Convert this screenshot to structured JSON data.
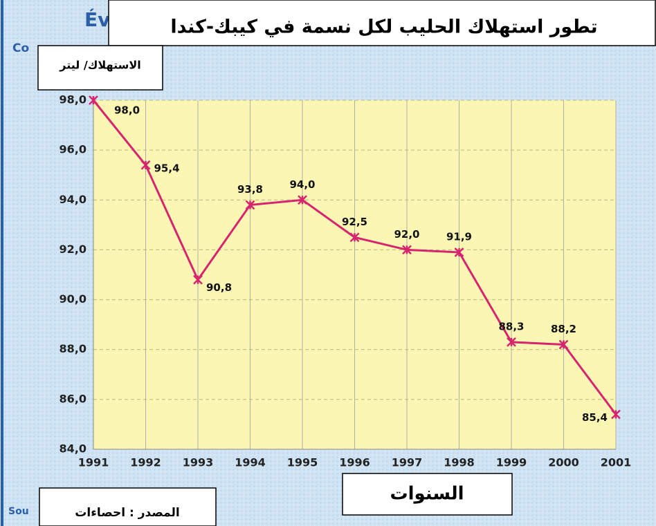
{
  "chart_data": {
    "type": "line",
    "title": "تطور استهلاك الحليب لكل نسمة في كيبك-كندا",
    "y_axis_label": "الاستهلاك/ ليتر",
    "x_axis_label": "السنوات",
    "source": "المصدر : احصاءات",
    "background_fragments": [
      "Év",
      "Co",
      "Sou"
    ],
    "categories": [
      "1991",
      "1992",
      "1993",
      "1994",
      "1995",
      "1996",
      "1997",
      "1998",
      "1999",
      "2000",
      "2001"
    ],
    "series": [
      {
        "name": "الاستهلاك/ ليتر",
        "color": "#d6246e",
        "values": [
          98.0,
          95.4,
          90.8,
          93.8,
          94.0,
          92.5,
          92.0,
          91.9,
          88.3,
          88.2,
          85.4
        ],
        "value_labels": [
          "98,0",
          "95,4",
          "90,8",
          "93,8",
          "94,0",
          "92,5",
          "92,0",
          "91,9",
          "88,3",
          "88,2",
          "85,4"
        ]
      }
    ],
    "ylim": [
      84,
      98
    ],
    "yticks": [
      {
        "value": 84,
        "label": "84,0"
      },
      {
        "value": 86,
        "label": "86,0"
      },
      {
        "value": 88,
        "label": "88,0"
      },
      {
        "value": 90,
        "label": "90,0"
      },
      {
        "value": 92,
        "label": "92,0"
      },
      {
        "value": 94,
        "label": "94,0"
      },
      {
        "value": 96,
        "label": "96,0"
      },
      {
        "value": 98,
        "label": "98,0"
      }
    ],
    "grid": true
  }
}
